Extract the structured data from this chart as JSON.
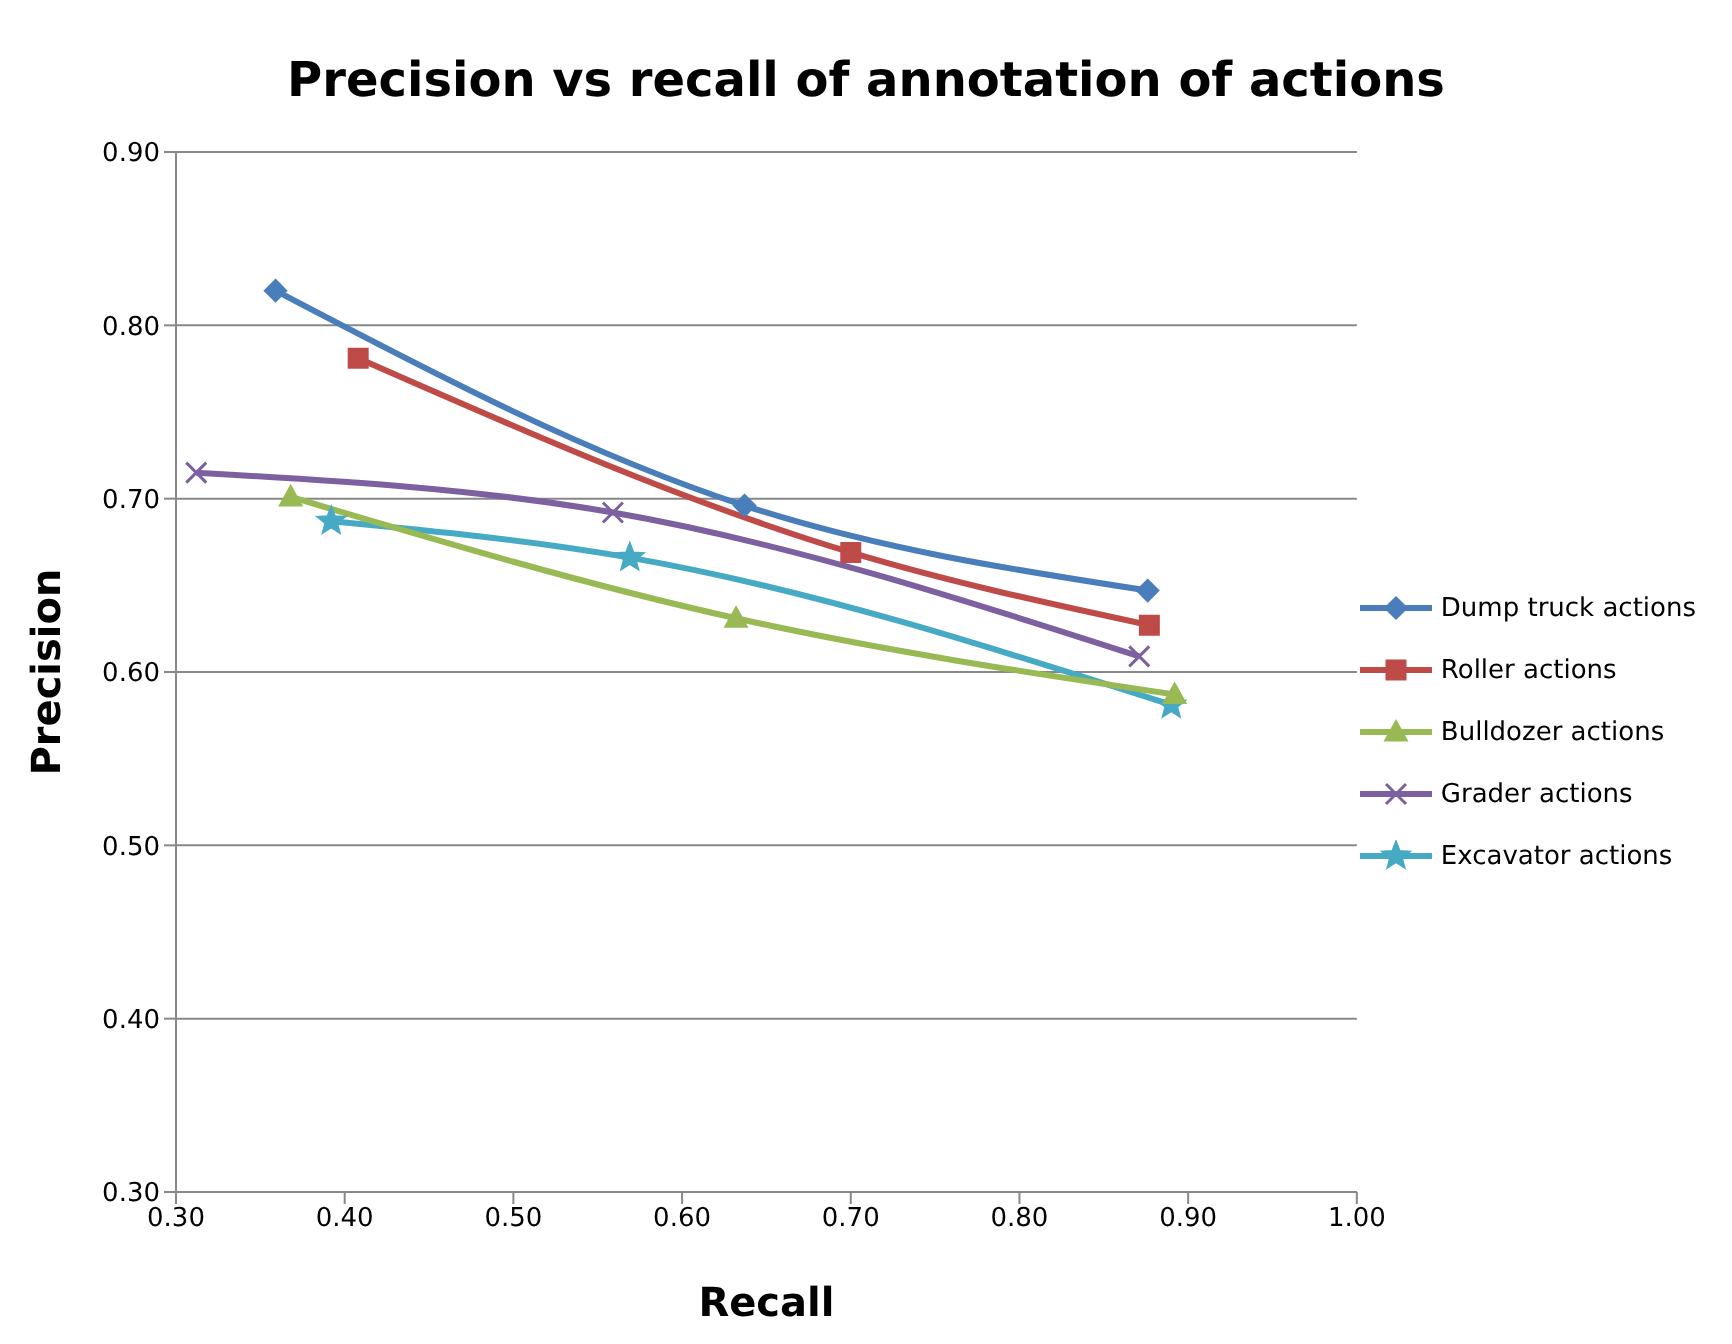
{
  "chart_data": {
    "type": "line",
    "title": "Precision vs recall of annotation of actions",
    "xlabel": "Recall",
    "ylabel": "Precision",
    "xlim": [
      0.3,
      1.0
    ],
    "xticks": [
      {
        "value": 0.3,
        "label": "0.30"
      },
      {
        "value": 0.4,
        "label": "0.40"
      },
      {
        "value": 0.5,
        "label": "0.50"
      },
      {
        "value": 0.6,
        "label": "0.60"
      },
      {
        "value": 0.7,
        "label": "0.70"
      },
      {
        "value": 0.8,
        "label": "0.80"
      },
      {
        "value": 0.9,
        "label": "0.90"
      },
      {
        "value": 1.0,
        "label": "1.00"
      }
    ],
    "ylim": [
      0.3,
      0.9
    ],
    "yticks": [
      {
        "value": 0.3,
        "label": "0.30"
      },
      {
        "value": 0.4,
        "label": "0.40"
      },
      {
        "value": 0.5,
        "label": "0.50"
      },
      {
        "value": 0.6,
        "label": "0.60"
      },
      {
        "value": 0.7,
        "label": "0.70"
      },
      {
        "value": 0.8,
        "label": "0.80"
      },
      {
        "value": 0.9,
        "label": "0.90"
      }
    ],
    "grid": "y",
    "legend": "right",
    "series": [
      {
        "name": "Dump truck actions",
        "color": "#4a7ebb",
        "marker": "diamond",
        "x": [
          0.359,
          0.637,
          0.876
        ],
        "values": [
          0.82,
          0.696,
          0.647
        ]
      },
      {
        "name": "Roller actions",
        "color": "#be4b48",
        "marker": "square",
        "x": [
          0.408,
          0.7,
          0.877
        ],
        "values": [
          0.781,
          0.669,
          0.627
        ]
      },
      {
        "name": "Bulldozer actions",
        "color": "#98b954",
        "marker": "triangle",
        "x": [
          0.368,
          0.632,
          0.892
        ],
        "values": [
          0.701,
          0.631,
          0.587
        ]
      },
      {
        "name": "Grader actions",
        "color": "#7d60a0",
        "marker": "cross",
        "x": [
          0.312,
          0.559,
          0.871
        ],
        "values": [
          0.715,
          0.692,
          0.609
        ]
      },
      {
        "name": "Excavator actions",
        "color": "#46aac5",
        "marker": "star",
        "x": [
          0.392,
          0.569,
          0.89
        ],
        "values": [
          0.687,
          0.666,
          0.581
        ]
      }
    ]
  }
}
